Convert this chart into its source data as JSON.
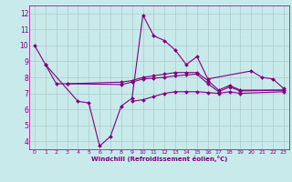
{
  "bg_color": "#c8eaea",
  "line_color": "#800080",
  "grid_color": "#b0c8c8",
  "xlabel": "Windchill (Refroidissement éolien,°C)",
  "xlabel_color": "#800080",
  "ylim": [
    3.5,
    12.5
  ],
  "xlim": [
    -0.5,
    23.5
  ],
  "yticks": [
    4,
    5,
    6,
    7,
    8,
    9,
    10,
    11,
    12
  ],
  "xticks": [
    0,
    1,
    2,
    3,
    4,
    5,
    6,
    7,
    8,
    9,
    10,
    11,
    12,
    13,
    14,
    15,
    16,
    17,
    18,
    19,
    20,
    21,
    22,
    23
  ],
  "series": [
    {
      "x": [
        0,
        1,
        4,
        5,
        6,
        7,
        8,
        9,
        10,
        11,
        12,
        13,
        14,
        15,
        16,
        20,
        21,
        22,
        23
      ],
      "y": [
        10.0,
        8.8,
        6.5,
        6.4,
        3.7,
        4.3,
        6.2,
        6.7,
        11.9,
        10.6,
        10.3,
        9.7,
        8.8,
        9.3,
        7.9,
        8.4,
        8.0,
        7.9,
        7.3
      ]
    },
    {
      "x": [
        1,
        2,
        3,
        8,
        9,
        10,
        11,
        12,
        13,
        14,
        15,
        16,
        17,
        18,
        19,
        23
      ],
      "y": [
        8.8,
        7.6,
        7.6,
        7.7,
        7.8,
        8.0,
        8.1,
        8.2,
        8.3,
        8.3,
        8.3,
        7.8,
        7.2,
        7.5,
        7.2,
        7.2
      ]
    },
    {
      "x": [
        3,
        8,
        9,
        10,
        11,
        12,
        13,
        14,
        15,
        16,
        17,
        18,
        19,
        23
      ],
      "y": [
        7.6,
        7.55,
        7.7,
        7.9,
        7.95,
        8.0,
        8.1,
        8.15,
        8.2,
        7.6,
        7.1,
        7.4,
        7.15,
        7.2
      ]
    },
    {
      "x": [
        9,
        10,
        11,
        12,
        13,
        14,
        15,
        16,
        17,
        18,
        19,
        23
      ],
      "y": [
        6.5,
        6.6,
        6.8,
        7.0,
        7.1,
        7.1,
        7.1,
        7.05,
        7.0,
        7.1,
        7.0,
        7.1
      ]
    }
  ]
}
